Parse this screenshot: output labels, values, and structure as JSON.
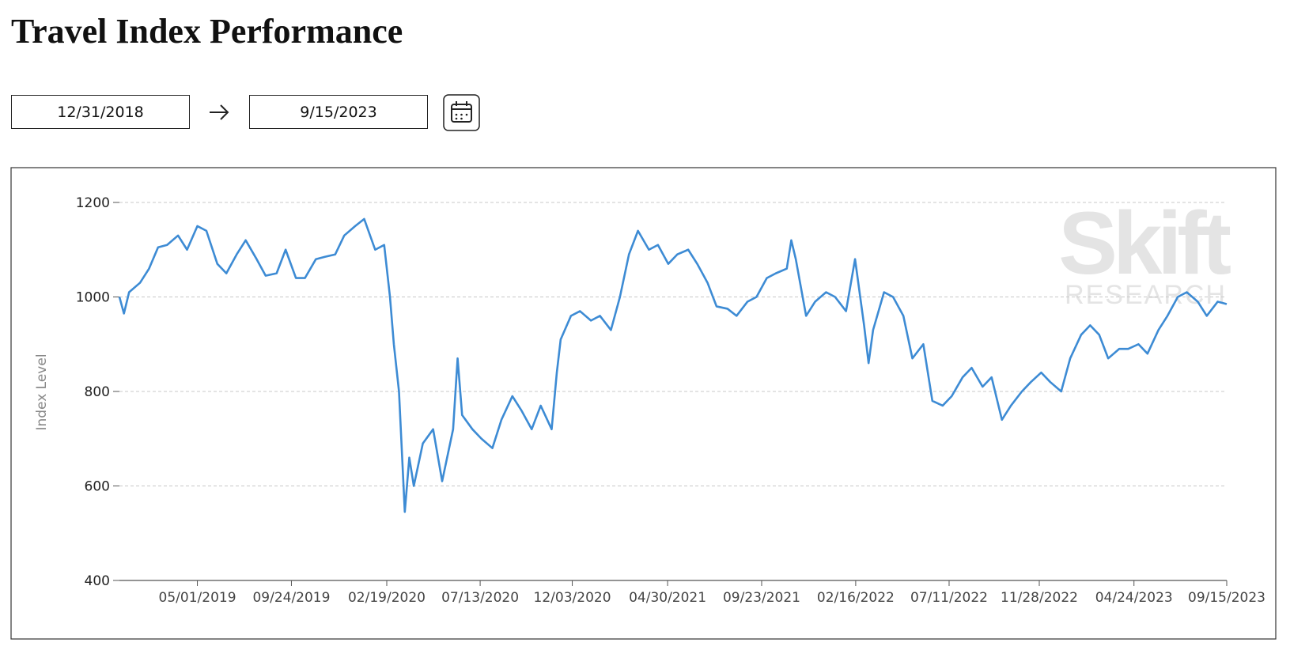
{
  "header": {
    "title": "Travel Index Performance"
  },
  "controls": {
    "start_date": "12/31/2018",
    "end_date": "9/15/2023"
  },
  "chart_data": {
    "type": "line",
    "y_label": "Index Level",
    "watermark_title": "Skift",
    "watermark_subtitle": "RESEARCH",
    "color": "#3d8bd4",
    "grid": true,
    "xlim": [
      "12/31/2018",
      "09/15/2023"
    ],
    "xticks": [
      "05/01/2019",
      "09/24/2019",
      "02/19/2020",
      "07/13/2020",
      "12/03/2020",
      "04/30/2021",
      "09/23/2021",
      "02/16/2022",
      "07/11/2022",
      "11/28/2022",
      "04/24/2023",
      "09/15/2023"
    ],
    "ylim": [
      400,
      1200
    ],
    "yticks": [
      400,
      600,
      800,
      1000,
      1200
    ],
    "x": [
      "12/31/2018",
      "01/07/2019",
      "01/15/2019",
      "02/01/2019",
      "02/15/2019",
      "03/01/2019",
      "03/15/2019",
      "04/01/2019",
      "04/15/2019",
      "05/01/2019",
      "05/15/2019",
      "06/01/2019",
      "06/15/2019",
      "07/01/2019",
      "07/15/2019",
      "08/01/2019",
      "08/15/2019",
      "09/01/2019",
      "09/15/2019",
      "10/01/2019",
      "10/15/2019",
      "11/01/2019",
      "11/15/2019",
      "12/01/2019",
      "12/15/2019",
      "01/01/2020",
      "01/15/2020",
      "02/01/2020",
      "02/15/2020",
      "02/24/2020",
      "03/01/2020",
      "03/09/2020",
      "03/18/2020",
      "03/25/2020",
      "04/01/2020",
      "04/15/2020",
      "05/01/2020",
      "05/15/2020",
      "06/01/2020",
      "06/08/2020",
      "06/15/2020",
      "07/01/2020",
      "07/15/2020",
      "08/01/2020",
      "08/15/2020",
      "09/01/2020",
      "09/15/2020",
      "10/01/2020",
      "10/15/2020",
      "11/01/2020",
      "11/09/2020",
      "11/15/2020",
      "12/01/2020",
      "12/15/2020",
      "01/01/2021",
      "01/15/2021",
      "02/01/2021",
      "02/15/2021",
      "03/01/2021",
      "03/15/2021",
      "04/01/2021",
      "04/15/2021",
      "05/01/2021",
      "05/15/2021",
      "06/01/2021",
      "06/15/2021",
      "07/01/2021",
      "07/15/2021",
      "08/01/2021",
      "08/15/2021",
      "09/01/2021",
      "09/15/2021",
      "10/01/2021",
      "10/15/2021",
      "11/01/2021",
      "11/08/2021",
      "11/15/2021",
      "12/01/2021",
      "12/15/2021",
      "01/01/2022",
      "01/15/2022",
      "02/01/2022",
      "02/15/2022",
      "03/01/2022",
      "03/08/2022",
      "03/15/2022",
      "04/01/2022",
      "04/15/2022",
      "05/01/2022",
      "05/15/2022",
      "06/01/2022",
      "06/15/2022",
      "07/01/2022",
      "07/15/2022",
      "08/01/2022",
      "08/15/2022",
      "09/01/2022",
      "09/15/2022",
      "10/01/2022",
      "10/15/2022",
      "11/01/2022",
      "11/15/2022",
      "12/01/2022",
      "12/15/2022",
      "01/01/2023",
      "01/15/2023",
      "02/01/2023",
      "02/15/2023",
      "03/01/2023",
      "03/15/2023",
      "04/01/2023",
      "04/15/2023",
      "05/01/2023",
      "05/15/2023",
      "06/01/2023",
      "06/15/2023",
      "07/01/2023",
      "07/15/2023",
      "08/01/2023",
      "08/15/2023",
      "09/01/2023",
      "09/15/2023"
    ],
    "values": [
      1000,
      965,
      1010,
      1030,
      1060,
      1105,
      1110,
      1130,
      1100,
      1150,
      1140,
      1070,
      1050,
      1090,
      1120,
      1080,
      1045,
      1050,
      1100,
      1040,
      1040,
      1080,
      1085,
      1090,
      1130,
      1150,
      1165,
      1100,
      1110,
      1000,
      900,
      800,
      545,
      660,
      600,
      690,
      720,
      610,
      720,
      870,
      750,
      720,
      700,
      680,
      740,
      790,
      760,
      720,
      770,
      720,
      840,
      910,
      960,
      970,
      950,
      960,
      930,
      1000,
      1090,
      1140,
      1100,
      1110,
      1070,
      1090,
      1100,
      1070,
      1030,
      980,
      975,
      960,
      990,
      1000,
      1040,
      1050,
      1060,
      1120,
      1080,
      960,
      990,
      1010,
      1000,
      970,
      1080,
      940,
      860,
      930,
      1010,
      1000,
      960,
      870,
      900,
      780,
      770,
      790,
      830,
      850,
      810,
      830,
      740,
      770,
      800,
      820,
      840,
      820,
      800,
      870,
      920,
      940,
      920,
      870,
      890,
      890,
      900,
      880,
      930,
      960,
      1000,
      1010,
      990,
      960,
      990,
      985
    ]
  }
}
